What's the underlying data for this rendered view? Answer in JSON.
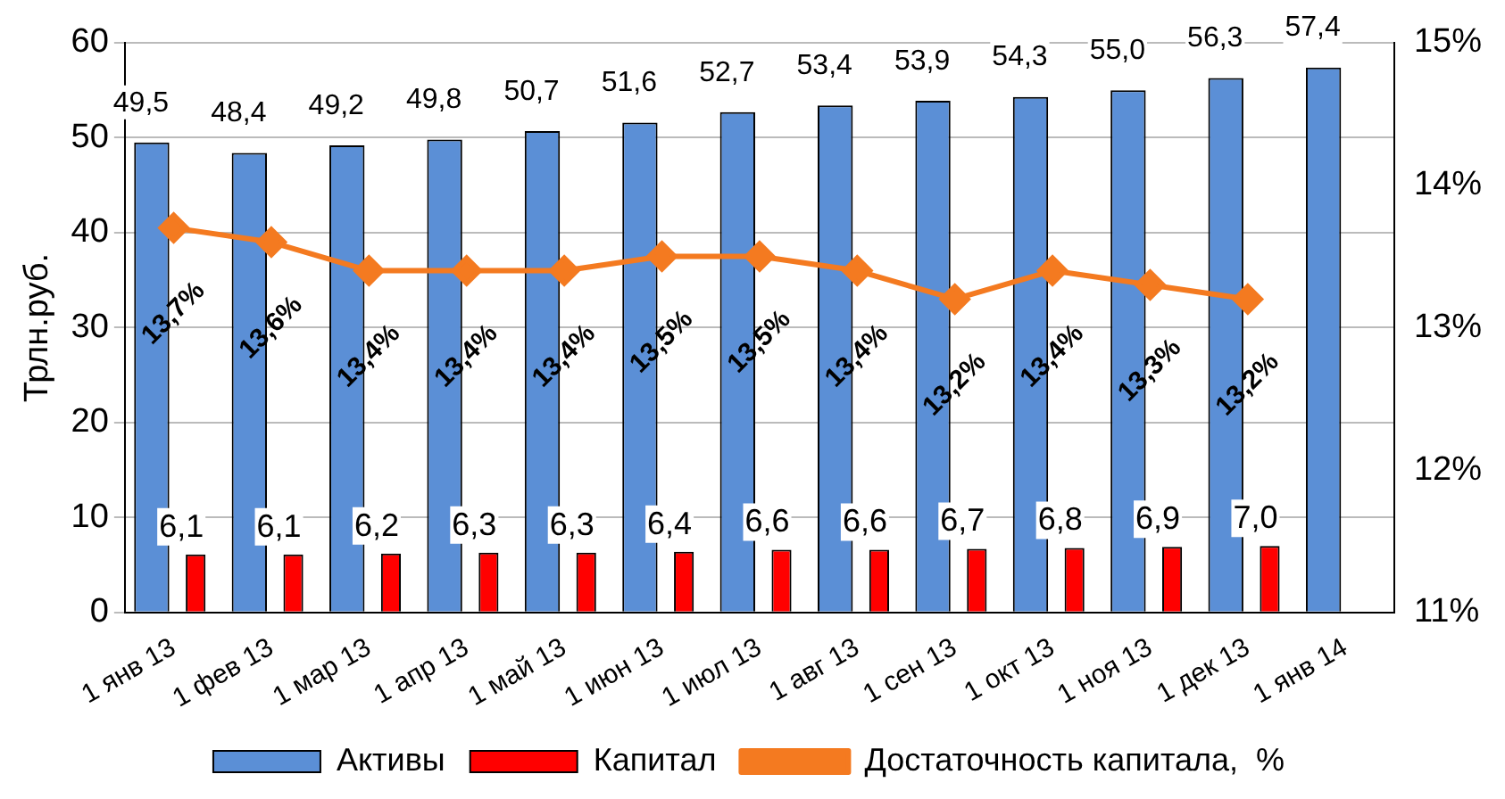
{
  "chart_data": {
    "type": "bar",
    "ylabel": "Трлн.руб.",
    "categories": [
      "1 янв 13",
      "1 фев 13",
      "1 мар 13",
      "1 апр 13",
      "1 май 13",
      "1 июн 13",
      "1 июл 13",
      "1 авг 13",
      "1 сен 13",
      "1 окт 13",
      "1 ноя 13",
      "1 дек 13",
      "1 янв 14"
    ],
    "series": [
      {
        "name": "Активы",
        "color": "#5b8fd6",
        "values": [
          49.5,
          48.4,
          49.2,
          49.8,
          50.7,
          51.6,
          52.7,
          53.4,
          53.9,
          54.3,
          55.0,
          56.3,
          57.4
        ],
        "value_labels": [
          "49,5",
          "48,4",
          "49,2",
          "49,8",
          "50,7",
          "51,6",
          "52,7",
          "53,4",
          "53,9",
          "54,3",
          "55,0",
          "56,3",
          "57,4"
        ]
      },
      {
        "name": "Капитал",
        "color": "#ff0000",
        "values": [
          6.1,
          6.1,
          6.2,
          6.3,
          6.3,
          6.4,
          6.6,
          6.6,
          6.7,
          6.8,
          6.9,
          7.0,
          null
        ],
        "value_labels": [
          "6,1",
          "6,1",
          "6,2",
          "6,3",
          "6,3",
          "6,4",
          "6,6",
          "6,6",
          "6,7",
          "6,8",
          "6,9",
          "7,0",
          null
        ]
      },
      {
        "name": "Достаточность капитала,  %",
        "type": "line",
        "axis": "y2",
        "color": "#f47a20",
        "marker": "diamond",
        "values": [
          13.7,
          13.6,
          13.4,
          13.4,
          13.4,
          13.5,
          13.5,
          13.4,
          13.2,
          13.4,
          13.3,
          13.2,
          null
        ],
        "value_labels": [
          "13,7%",
          "13,6%",
          "13,4%",
          "13,4%",
          "13,4%",
          "13,5%",
          "13,5%",
          "13,4%",
          "13,2%",
          "13,4%",
          "13,3%",
          "13,2%",
          null
        ]
      }
    ],
    "ylim": [
      0,
      60
    ],
    "yticks": [
      0,
      10,
      20,
      30,
      40,
      50,
      60
    ],
    "y2lim": [
      11,
      15
    ],
    "y2ticks": [
      {
        "value": 11,
        "label": "11%"
      },
      {
        "value": 12,
        "label": "12%"
      },
      {
        "value": 13,
        "label": "13%"
      },
      {
        "value": 14,
        "label": "14%"
      },
      {
        "value": 15,
        "label": "15%"
      }
    ],
    "grid": "y",
    "legend": "bottom"
  }
}
